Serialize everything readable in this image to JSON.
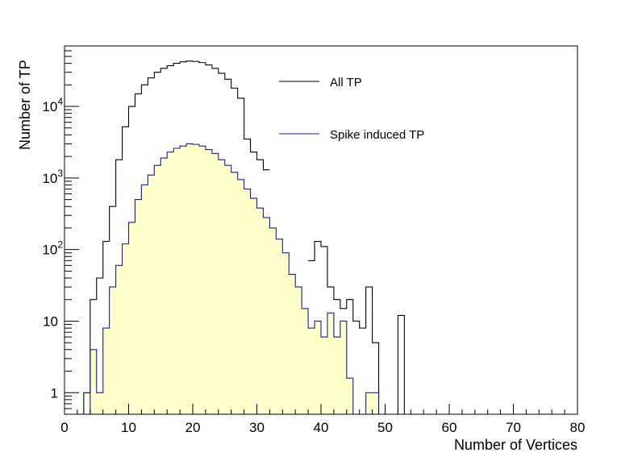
{
  "chart_data": {
    "type": "histogram",
    "xlabel": "Number of Vertices",
    "ylabel": "Number of TP",
    "xlim": [
      0,
      80
    ],
    "ylim": [
      0.5,
      70000
    ],
    "yscale": "log",
    "bin_width": 1,
    "x_ticks": [
      "0",
      "10",
      "20",
      "30",
      "40",
      "50",
      "60",
      "70",
      "80"
    ],
    "y_ticks": [
      {
        "value": 1,
        "base": "1",
        "exp": ""
      },
      {
        "value": 10,
        "base": "10",
        "exp": ""
      },
      {
        "value": 100,
        "base": "10",
        "exp": "2"
      },
      {
        "value": 1000,
        "base": "10",
        "exp": "3"
      },
      {
        "value": 10000,
        "base": "10",
        "exp": "4"
      }
    ],
    "legend_position": "top-right",
    "series": [
      {
        "name": "All TP",
        "color": "#000000",
        "fill": "none",
        "bin_start": 3,
        "values": [
          1,
          20,
          40,
          130,
          400,
          1800,
          5200,
          10000,
          15000,
          20000,
          25000,
          30000,
          34000,
          37000,
          40000,
          42000,
          43000,
          42500,
          41000,
          38000,
          34000,
          29000,
          24000,
          18000,
          13000,
          3500,
          2300,
          1800,
          1300,
          900,
          600,
          420,
          340,
          260,
          180,
          70,
          130,
          110,
          30,
          20,
          15,
          20,
          10,
          8,
          30,
          5,
          0,
          0,
          0,
          12,
          0.3,
          0.3,
          0.3,
          0.3,
          0.3,
          0.3,
          0.3,
          0.3,
          0.3,
          0.3,
          0.3,
          0.3,
          0.3,
          0.3,
          0.3,
          0.3,
          0.3,
          0.3,
          0.3,
          0.3,
          0.3,
          0.3,
          0.3,
          0.3,
          0.3,
          0.3,
          0.3
        ],
        "gaps": [
          [
            32,
            38
          ]
        ]
      },
      {
        "name": "Spike induced TP",
        "color": "#1a1a9a",
        "fill": "#ffffcc",
        "bin_start": 3,
        "values": [
          0.3,
          4,
          1,
          8,
          30,
          60,
          120,
          240,
          500,
          800,
          1100,
          1500,
          1900,
          2300,
          2600,
          2800,
          3000,
          2950,
          2800,
          2500,
          2200,
          1800,
          1500,
          1200,
          950,
          700,
          520,
          380,
          280,
          200,
          140,
          90,
          45,
          30,
          15,
          8,
          10,
          6,
          13,
          6,
          10,
          1.6,
          0.3,
          0.3,
          1,
          1,
          0.3,
          0.3,
          0.3,
          0.3,
          0.3,
          0.3,
          0.3,
          0.3,
          0.3,
          0.3,
          0.3,
          0.3,
          0.3,
          0.3,
          0.3,
          0.3,
          0.3,
          0.3,
          0.3,
          0.3,
          0.3,
          0.3,
          0.3,
          0.3,
          0.3,
          0.3,
          0.3,
          0.3,
          0.3,
          0.3,
          0.3
        ],
        "gaps": []
      }
    ]
  }
}
